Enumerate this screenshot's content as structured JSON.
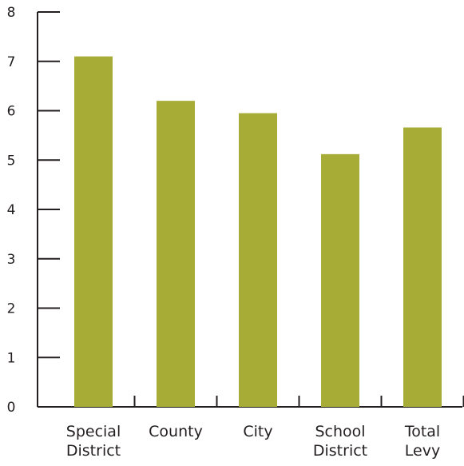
{
  "chart_data": {
    "type": "bar",
    "categories": [
      [
        "Special",
        "District"
      ],
      [
        "County"
      ],
      [
        "City"
      ],
      [
        "School",
        "District"
      ],
      [
        "Total",
        "Levy"
      ]
    ],
    "values": [
      7.1,
      6.2,
      5.95,
      5.12,
      5.66
    ],
    "title": "",
    "xlabel": "",
    "ylabel": "",
    "ylim": [
      0,
      8
    ],
    "yticks": [
      "0",
      "1",
      "2",
      "3",
      "4",
      "5",
      "6",
      "7",
      "8"
    ],
    "grid": false,
    "bar_color": "#a6ac35",
    "axis_color": "#231f20"
  }
}
